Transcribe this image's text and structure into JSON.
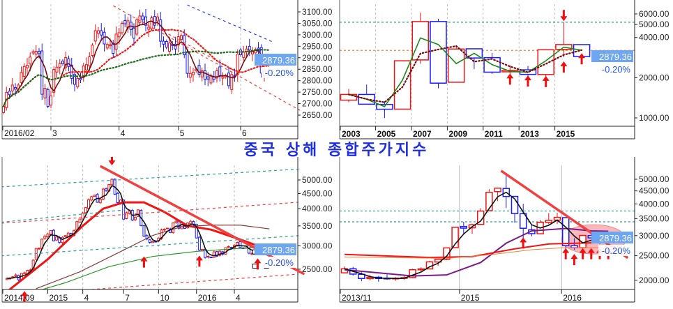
{
  "title": "중국 상해 종합주가지수",
  "colors": {
    "up": "#f01414",
    "down": "#1a1aff",
    "price_label_bg": "#6ea6f2",
    "title": "#1f2fe0"
  },
  "chart_data": [
    {
      "id": "tl",
      "type": "candlestick",
      "period": "daily",
      "scale": "linear",
      "last_price": "2879.36",
      "change": "-0.20%",
      "x_labels": [
        {
          "index": 0,
          "label": "2016/02"
        },
        {
          "index": 16,
          "label": "3"
        },
        {
          "index": 39,
          "label": "4"
        },
        {
          "index": 59,
          "label": "5"
        },
        {
          "index": 80,
          "label": "6"
        }
      ],
      "y_ticks": [
        3100,
        3050,
        3000,
        2950,
        2900,
        2850,
        2800,
        2750,
        2700,
        2650
      ],
      "closes": [
        2688,
        2749,
        2739,
        2781,
        2763,
        2781,
        2836,
        2862,
        2867,
        2903,
        2927,
        2928,
        2918,
        2741,
        2767,
        2688,
        2733,
        2849,
        2859,
        2874,
        2874,
        2901,
        2862,
        2810,
        2784,
        2810,
        2804,
        2864,
        2870,
        2904,
        2955,
        3018,
        3018,
        2999,
        2960,
        2958,
        2957,
        2919,
        3003,
        3009,
        3050,
        3048,
        3061,
        3023,
        2985,
        3066,
        3082,
        3066,
        3042,
        3033,
        3074,
        3042,
        3078,
        2972,
        2959,
        2946,
        2964,
        2953,
        2938,
        2992,
        2997,
        2913,
        2832,
        2832,
        2837,
        2850,
        2828,
        2843,
        2806,
        2807,
        2822,
        2806,
        2843,
        2822,
        2817,
        2822,
        2778,
        2827,
        2821,
        2916,
        2913,
        2925,
        2938,
        2934,
        2927,
        2936,
        2927,
        2833,
        2842,
        2874,
        2879
      ],
      "moving_averages": [
        {
          "period": 5,
          "color": "#7a0a0a",
          "style": "solid"
        },
        {
          "period": 20,
          "color": "#f01414",
          "style": "dotted"
        },
        {
          "period": 60,
          "color": "#1a6a1a",
          "style": "dotted"
        }
      ],
      "trendlines": [
        {
          "from": [
            62,
            3130
          ],
          "to": [
            91,
            2968
          ],
          "color": "#3344ee",
          "style": "dashed"
        },
        {
          "from": [
            37,
            3127
          ],
          "to": [
            100,
            2671
          ],
          "color": "#f04040",
          "style": "dashed"
        },
        {
          "from": [
            54,
            3015
          ],
          "to": [
            80,
            2830
          ],
          "color": "#f04040",
          "style": "dashed"
        }
      ]
    },
    {
      "id": "tr",
      "type": "candlestick",
      "period": "yearly",
      "scale": "log",
      "last_price": "2879.36",
      "change": "-0.20%",
      "x_labels": [
        {
          "index": 0,
          "label": "2003"
        },
        {
          "index": 2,
          "label": "2005"
        },
        {
          "index": 4,
          "label": "2007"
        },
        {
          "index": 6,
          "label": "2009"
        },
        {
          "index": 8,
          "label": "2011"
        },
        {
          "index": 10,
          "label": "2013"
        },
        {
          "index": 12,
          "label": "2015"
        }
      ],
      "y_ticks": [
        6000,
        5000,
        4000,
        2000,
        1000
      ],
      "ohlc": [
        [
          1357,
          1650,
          1310,
          1497
        ],
        [
          1497,
          1777,
          1260,
          1266
        ],
        [
          1260,
          1330,
          998,
          1161
        ],
        [
          1163,
          2698,
          1161,
          2675
        ],
        [
          2715,
          6124,
          2541,
          5262
        ],
        [
          5265,
          5522,
          1664,
          1820
        ],
        [
          1849,
          3478,
          1844,
          3277
        ],
        [
          3289,
          3306,
          2319,
          2808
        ],
        [
          2825,
          3067,
          2134,
          2199
        ],
        [
          2212,
          2478,
          1949,
          2269
        ],
        [
          2289,
          2444,
          1849,
          2116
        ],
        [
          2112,
          3239,
          1974,
          3235
        ],
        [
          3258,
          5178,
          2850,
          3539
        ],
        [
          3536,
          3539,
          2638,
          2879
        ]
      ],
      "moving_averages": [
        {
          "period": 2,
          "color": "#1a8a1a",
          "style": "solid"
        },
        {
          "period": 3,
          "color": "#7a0a0a",
          "style": "dotted"
        }
      ],
      "hlines": [
        {
          "value": 5200,
          "color": "#2a9a9a"
        },
        {
          "value": 3200,
          "color": "#f5803a"
        }
      ],
      "arrows": [
        {
          "index": 9,
          "value": 2150,
          "dir": "up"
        },
        {
          "index": 10,
          "value": 2080,
          "dir": "up"
        },
        {
          "index": 11,
          "value": 2060,
          "dir": "up"
        },
        {
          "index": 12,
          "value": 2650,
          "dir": "up"
        },
        {
          "index": 13,
          "value": 3050,
          "dir": "up"
        },
        {
          "index": 12,
          "value": 5300,
          "dir": "down"
        }
      ]
    },
    {
      "id": "bl",
      "type": "candlestick",
      "period": "weekly",
      "scale": "log",
      "last_price": "2879.36",
      "change": "-0.20%",
      "x_labels": [
        {
          "index": 0,
          "label": "2014/09"
        },
        {
          "index": 14,
          "label": "2015"
        },
        {
          "index": 26,
          "label": "4"
        },
        {
          "index": 40,
          "label": "7"
        },
        {
          "index": 52,
          "label": "10"
        },
        {
          "index": 65,
          "label": "2016"
        },
        {
          "index": 78,
          "label": "4"
        }
      ],
      "y_ticks": [
        5000,
        4500,
        4000,
        3500,
        3000,
        2500
      ],
      "closes": [
        2330,
        2329,
        2357,
        2391,
        2302,
        2420,
        2430,
        2478,
        2487,
        2682,
        2938,
        2938,
        3157,
        3234,
        3285,
        3376,
        3116,
        3210,
        3075,
        3203,
        3246,
        3310,
        3241,
        3372,
        3617,
        3691,
        3863,
        4034,
        4287,
        4393,
        4441,
        4205,
        4308,
        4657,
        4611,
        4828,
        5023,
        4478,
        4192,
        4277,
        3687,
        3877,
        3957,
        3663,
        3744,
        3965,
        3507,
        3232,
        3160,
        3080,
        3097,
        3092,
        3183,
        3391,
        3412,
        3439,
        3325,
        3580,
        3630,
        3436,
        3524,
        3434,
        3580,
        3627,
        3539,
        3186,
        2901,
        2916,
        2738,
        2763,
        2746,
        2860,
        2767,
        2874,
        2810,
        2955,
        2979,
        2958,
        3009,
        3078,
        2959,
        2946,
        2992,
        2832,
        2827,
        2821,
        2916,
        2938,
        2927,
        2879
      ],
      "moving_averages": [
        {
          "period": 4,
          "color": "#111111",
          "style": "solid"
        }
      ],
      "curves": [
        {
          "color": "#f01414",
          "width": 3,
          "points": [
            [
              0,
              2100
            ],
            [
              14,
              2700
            ],
            [
              26,
              3500
            ],
            [
              33,
              4000
            ],
            [
              40,
              4200
            ],
            [
              47,
              4200
            ],
            [
              54,
              3900
            ],
            [
              62,
              3500
            ],
            [
              70,
              3400
            ],
            [
              80,
              3150
            ],
            [
              90,
              2900
            ]
          ]
        },
        {
          "color": "#8a3a3a",
          "width": 1.2,
          "points": [
            [
              10,
              2150
            ],
            [
              25,
              2450
            ],
            [
              40,
              2900
            ],
            [
              50,
              3250
            ],
            [
              60,
              3480
            ],
            [
              70,
              3520
            ],
            [
              80,
              3520
            ],
            [
              90,
              3420
            ]
          ]
        },
        {
          "color": "#2a9a2a",
          "width": 1.2,
          "points": [
            [
              6,
              2050
            ],
            [
              20,
              2250
            ],
            [
              35,
              2550
            ],
            [
              50,
              2760
            ],
            [
              65,
              2870
            ],
            [
              78,
              2930
            ],
            [
              90,
              2980
            ]
          ]
        }
      ],
      "trendlines": [
        {
          "from": [
            32,
            5570
          ],
          "to": [
            102,
            2406
          ],
          "color": "#f04040",
          "style": "thick"
        },
        {
          "from": [
            -2,
            2773
          ],
          "to": [
            100,
            3243
          ],
          "color": "#2a9a9a",
          "style": "dashed"
        },
        {
          "from": [
            -2,
            4738
          ],
          "to": [
            100,
            5440
          ],
          "color": "#2a9a9a",
          "style": "dashed"
        },
        {
          "from": [
            -2,
            3573
          ],
          "to": [
            100,
            4205
          ],
          "color": "#f04040",
          "style": "dashed"
        },
        {
          "from": [
            -2,
            3600
          ],
          "to": [
            40,
            3960
          ],
          "color": "#2a9a9a",
          "style": "dashed"
        },
        {
          "from": [
            29,
            2136
          ],
          "to": [
            100,
            2406
          ],
          "color": "#f04040",
          "style": "dashed"
        }
      ],
      "arrows": [
        {
          "index": 6,
          "value": 2110,
          "dir": "up"
        },
        {
          "index": 47,
          "value": 2760,
          "dir": "up"
        },
        {
          "index": 66,
          "value": 2780,
          "dir": "up"
        },
        {
          "index": 86,
          "value": 2720,
          "dir": "up"
        },
        {
          "index": 36,
          "value": 5600,
          "dir": "down"
        }
      ],
      "markers": [
        [
          85,
          2860
        ],
        [
          89,
          2860
        ],
        [
          85,
          2560
        ],
        [
          89,
          2560
        ]
      ]
    },
    {
      "id": "br",
      "type": "candlestick",
      "period": "monthly",
      "scale": "log",
      "last_price": "2879.36",
      "change": "-0.20%",
      "x_labels": [
        {
          "index": 0,
          "label": "2013/11"
        },
        {
          "index": 14,
          "label": "2015"
        },
        {
          "index": 26,
          "label": "2016"
        }
      ],
      "y_ticks": [
        5000,
        4500,
        4000,
        3500,
        3000,
        2500,
        2000
      ],
      "ohlc": [
        [
          2140,
          2270,
          2125,
          2220
        ],
        [
          2220,
          2260,
          2085,
          2116
        ],
        [
          2112,
          2150,
          1985,
          2033
        ],
        [
          2030,
          2100,
          2000,
          2056
        ],
        [
          2056,
          2080,
          1975,
          2033
        ],
        [
          2040,
          2110,
          2010,
          2026
        ],
        [
          2026,
          2060,
          1990,
          2039
        ],
        [
          2040,
          2080,
          2010,
          2048
        ],
        [
          2050,
          2220,
          2040,
          2201
        ],
        [
          2200,
          2250,
          2170,
          2217
        ],
        [
          2217,
          2390,
          2210,
          2364
        ],
        [
          2360,
          2430,
          2280,
          2420
        ],
        [
          2420,
          2690,
          2400,
          2683
        ],
        [
          2690,
          3240,
          2680,
          3235
        ],
        [
          3260,
          3400,
          3040,
          3210
        ],
        [
          3220,
          3340,
          3050,
          3310
        ],
        [
          3320,
          3840,
          3300,
          3748
        ],
        [
          3760,
          4570,
          3750,
          4441
        ],
        [
          4470,
          4620,
          4100,
          4612
        ],
        [
          4600,
          5180,
          3850,
          4277
        ],
        [
          4280,
          4300,
          3370,
          3664
        ],
        [
          3660,
          4000,
          2850,
          3206
        ],
        [
          3160,
          3320,
          2980,
          3053
        ],
        [
          3050,
          3460,
          3040,
          3383
        ],
        [
          3380,
          3680,
          3330,
          3445
        ],
        [
          3450,
          3690,
          3330,
          3539
        ],
        [
          3530,
          3540,
          2640,
          2738
        ],
        [
          2740,
          2930,
          2640,
          2688
        ],
        [
          2690,
          3020,
          2680,
          3003
        ],
        [
          3000,
          3100,
          2930,
          2938
        ],
        [
          2940,
          2960,
          2780,
          2917
        ],
        [
          2917,
          2950,
          2820,
          2879
        ]
      ],
      "moving_averages": [
        {
          "period": 3,
          "color": "#111111",
          "style": "solid"
        }
      ],
      "curves": [
        {
          "color": "#7a1a8a",
          "width": 2,
          "points": [
            [
              0,
              2200
            ],
            [
              8,
              2080
            ],
            [
              12,
              2100
            ],
            [
              16,
              2350
            ],
            [
              19,
              2800
            ],
            [
              22,
              3130
            ],
            [
              26,
              3200
            ],
            [
              29,
              3130
            ],
            [
              31,
              3120
            ]
          ]
        },
        {
          "color": "#f01414",
          "width": 2,
          "points": [
            [
              0,
              2530
            ],
            [
              10,
              2460
            ],
            [
              15,
              2480
            ],
            [
              20,
              2660
            ],
            [
              24,
              2780
            ],
            [
              31,
              2820
            ]
          ]
        },
        {
          "color": "#f5803a",
          "width": 1,
          "points": [
            [
              0,
              2470
            ],
            [
              12,
              2440
            ],
            [
              17,
              2520
            ],
            [
              22,
              2640
            ],
            [
              26,
              2690
            ],
            [
              31,
              2690
            ]
          ]
        }
      ],
      "hlines": [
        {
          "value": 3750,
          "color": "#2a9a9a"
        },
        {
          "value": 3400,
          "color": "#2a9a9a"
        }
      ],
      "trendlines": [
        {
          "from": [
            18.4,
            5400
          ],
          "to": [
            33.3,
            2450
          ],
          "color": "#f04040",
          "style": "thick"
        }
      ],
      "highlight": {
        "index": 29.3,
        "value": 2900,
        "color": "#f4a0a8"
      },
      "arrows": [
        {
          "index": 21,
          "value": 2950,
          "dir": "up"
        },
        {
          "index": 26,
          "value": 2680,
          "dir": "up"
        },
        {
          "index": 27,
          "value": 2540,
          "dir": "up"
        },
        {
          "index": 28,
          "value": 2680,
          "dir": "up"
        },
        {
          "index": 29,
          "value": 2680,
          "dir": "up"
        },
        {
          "index": 30,
          "value": 2680,
          "dir": "up"
        },
        {
          "index": 31,
          "value": 2680,
          "dir": "up"
        }
      ]
    }
  ]
}
